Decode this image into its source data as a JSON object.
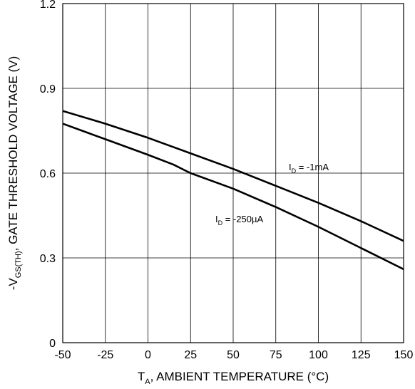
{
  "chart_data": {
    "type": "line",
    "xlabel": {
      "main": "T",
      "sub": "A",
      "rest": ", AMBIENT TEMPERATURE (°C)"
    },
    "ylabel": {
      "prefix": "-V",
      "sub": "GS(TH)",
      "rest": ", GATE THRESHOLD VOLTAGE (V)"
    },
    "xlim": [
      -50,
      150
    ],
    "ylim": [
      0,
      1.2
    ],
    "x_ticks": [
      -50,
      -25,
      0,
      25,
      50,
      75,
      100,
      125,
      150
    ],
    "x_tick_labels": [
      "-50",
      "-25",
      "0",
      "25",
      "50",
      "75",
      "100",
      "125",
      "150"
    ],
    "y_ticks": [
      0,
      0.3,
      0.6,
      0.9,
      1.2
    ],
    "y_tick_labels": [
      "0",
      "0.3",
      "0.6",
      "0.9",
      "1.2"
    ],
    "grid": true,
    "series": [
      {
        "name": {
          "main": "I",
          "sub": "D",
          "rest": " = -1mA"
        },
        "x": [
          -50,
          -25,
          0,
          25,
          50,
          75,
          100,
          125,
          150
        ],
        "y": [
          0.82,
          0.775,
          0.725,
          0.67,
          0.615,
          0.555,
          0.495,
          0.43,
          0.36
        ]
      },
      {
        "name": {
          "main": "I",
          "sub": "D",
          "rest": " = -250µA"
        },
        "x": [
          -50,
          -25,
          0,
          15,
          25,
          50,
          75,
          100,
          125,
          150
        ],
        "y": [
          0.775,
          0.72,
          0.665,
          0.63,
          0.6,
          0.545,
          0.48,
          0.41,
          0.335,
          0.26
        ]
      }
    ]
  }
}
